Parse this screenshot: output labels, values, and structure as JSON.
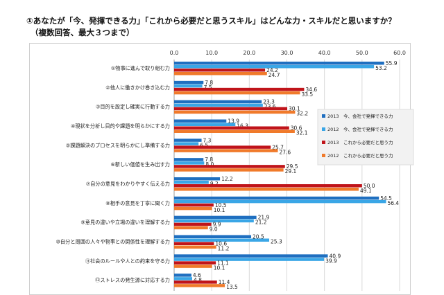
{
  "title": "①あなたが「今、発揮できる力」「これから必要だと思うスキル」はどんな力・スキルだと思いますか？",
  "subtitle": "（複数回答、最大３つまで）",
  "chart_data": {
    "type": "bar",
    "orientation": "horizontal",
    "title": "①あなたが「今、発揮できる力」「これから必要だと思うスキル」はどんな力・スキルだと思いますか？",
    "subtitle": "（複数回答、最大３つまで）",
    "xlim": [
      0,
      60
    ],
    "x_ticks": [
      "0.0",
      "10.0",
      "20.0",
      "30.0",
      "40.0",
      "50.0",
      "60.0"
    ],
    "x_axis_position": "top",
    "grid": true,
    "legend_position": "right",
    "categories": [
      "①物事に進んで取り組む力",
      "②他人に働きかけ巻き込む力",
      "③目的を設定し確実に行動する力",
      "④現状を分析し目的や課題を明らかにする力",
      "⑤課題解決のプロセスを明らかにし準備する力",
      "⑥新しい価値を生み出す力",
      "⑦自分の意見をわかりやすく伝える力",
      "⑧相手の意見を丁寧に聞く力",
      "⑨意見の違いや立場の違いを理解する力",
      "⑩自分と周囲の人々や物事との関係性を理解する力",
      "⑪社会のルールや人との約束を守る力",
      "⑫ストレスの発生源に対応する力"
    ],
    "series": [
      {
        "name": "2013　今、会社で発揮できる力",
        "color": "#1f6fc0",
        "values": [
          55.9,
          7.8,
          23.3,
          13.9,
          7.3,
          7.8,
          12.2,
          54.5,
          21.9,
          20.5,
          40.9,
          4.6
        ]
      },
      {
        "name": "2012　今、会社で発揮できる力",
        "color": "#3aa6e6",
        "values": [
          53.2,
          7.5,
          23.6,
          16.3,
          6.5,
          8.0,
          9.2,
          56.4,
          21.2,
          25.3,
          39.9,
          4.8
        ]
      },
      {
        "name": "2013　これから必要だと思う力",
        "color": "#c0141a",
        "values": [
          24.2,
          34.6,
          30.1,
          30.6,
          25.7,
          29.5,
          50.0,
          10.5,
          9.9,
          10.6,
          11.1,
          11.4
        ]
      },
      {
        "name": "2012　これから必要だと思う力",
        "color": "#f07a2a",
        "values": [
          24.7,
          33.5,
          32.2,
          32.1,
          27.6,
          29.1,
          49.1,
          10.1,
          9.0,
          11.2,
          10.1,
          13.5
        ]
      }
    ]
  }
}
